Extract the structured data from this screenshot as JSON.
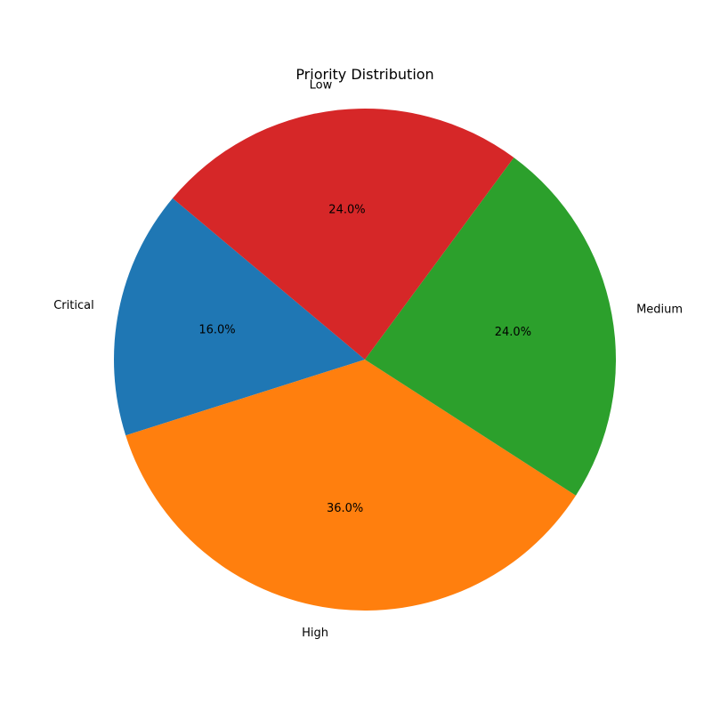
{
  "chart_data": {
    "type": "pie",
    "title": "Priority Distribution",
    "start_angle_deg": 140,
    "direction": "counterclockwise",
    "slices": [
      {
        "label": "Critical",
        "value": 16.0,
        "pct_label": "16.0%",
        "color": "#1f77b4"
      },
      {
        "label": "High",
        "value": 36.0,
        "pct_label": "36.0%",
        "color": "#ff7f0e"
      },
      {
        "label": "Medium",
        "value": 24.0,
        "pct_label": "24.0%",
        "color": "#2ca02c"
      },
      {
        "label": "Low",
        "value": 24.0,
        "pct_label": "24.0%",
        "color": "#d62728"
      }
    ]
  }
}
